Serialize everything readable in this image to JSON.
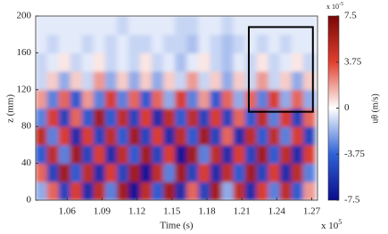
{
  "chart_data": {
    "type": "heatmap",
    "xlabel": "Time (s)",
    "ylabel": "z (mm)",
    "x_multiplier": {
      "base": "x 10",
      "exponent": "5"
    },
    "x": [
      1.038,
      1.048,
      1.058,
      1.068,
      1.078,
      1.088,
      1.098,
      1.108,
      1.118,
      1.128,
      1.138,
      1.148,
      1.158,
      1.168,
      1.178,
      1.188,
      1.198,
      1.208,
      1.218,
      1.228,
      1.238,
      1.248,
      1.258,
      1.268
    ],
    "y": [
      10,
      30,
      50,
      70,
      90,
      110,
      130,
      150,
      170,
      190
    ],
    "values": [
      [
        -2,
        3,
        -5,
        4,
        -6,
        5,
        -3,
        6,
        -7,
        5,
        -4,
        6,
        -6,
        3,
        -5,
        6,
        -2,
        5,
        -6,
        4,
        -3,
        5,
        -4,
        2
      ],
      [
        3,
        -5,
        6,
        -4,
        5,
        -6,
        4,
        -5,
        6,
        -7,
        5,
        -3,
        6,
        -5,
        4,
        -6,
        5,
        -4,
        6,
        -5,
        4,
        -6,
        5,
        -3
      ],
      [
        -4,
        5,
        -3,
        6,
        -5,
        4,
        -6,
        5,
        -4,
        6,
        -5,
        4,
        -7,
        6,
        -3,
        5,
        -6,
        4,
        -5,
        6,
        -4,
        5,
        -6,
        4
      ],
      [
        5,
        -3,
        4,
        -6,
        4,
        -5,
        5,
        -4,
        6,
        -5,
        4,
        -6,
        5,
        -4,
        6,
        -5,
        3,
        -6,
        5,
        -4,
        5,
        -3,
        4,
        -5
      ],
      [
        -3,
        4,
        -5,
        3,
        -4,
        6,
        -4,
        5,
        -5,
        4,
        -6,
        5,
        -4,
        5,
        -5,
        4,
        -5,
        3,
        -4,
        5,
        -3,
        4,
        -5,
        3
      ],
      [
        2,
        -3,
        3,
        -4,
        2,
        -3,
        4,
        -3,
        3,
        -4,
        3,
        -2,
        4,
        -3,
        2,
        -4,
        3,
        -2,
        3,
        -3,
        4,
        -2,
        3,
        -2
      ],
      [
        -1,
        1,
        -2,
        1,
        -1,
        2,
        -2,
        1,
        -2,
        1,
        -2,
        1,
        -1,
        2,
        -1,
        1,
        -2,
        1,
        -1,
        2,
        -1,
        1,
        -2,
        1
      ],
      [
        -1,
        -0.5,
        0.5,
        -1,
        -0.5,
        0.5,
        -1,
        -0.5,
        -1,
        0.5,
        -1,
        -0.5,
        -1.5,
        -0.5,
        0.5,
        -1,
        -1.5,
        -0.5,
        -1,
        0.5,
        -1,
        -0.5,
        0.5,
        -1
      ],
      [
        -0.5,
        -1,
        -0.5,
        -0.5,
        -1,
        -0.5,
        -1,
        -0.5,
        -1,
        -1,
        -0.5,
        -1,
        -1,
        -1.5,
        -0.5,
        -1,
        -1.5,
        -1,
        -0.5,
        -1,
        -0.5,
        -1,
        -0.5,
        -0.5
      ],
      [
        -0.5,
        -0.5,
        -0.5,
        -0.5,
        -0.5,
        -0.5,
        -0.5,
        -1,
        -0.5,
        -0.5,
        -0.5,
        -0.5,
        -1,
        -1,
        -0.5,
        -0.5,
        -1,
        -0.5,
        -0.5,
        -0.5,
        -0.5,
        -0.5,
        -0.5,
        -0.5
      ]
    ],
    "cell_width": 0.01,
    "cell_height": 20,
    "xlim": [
      1.033,
      1.275
    ],
    "xticks": [
      1.06,
      1.09,
      1.12,
      1.15,
      1.18,
      1.21,
      1.24,
      1.27
    ],
    "ylim": [
      0,
      200
    ],
    "yticks": [
      0,
      40,
      80,
      120,
      160,
      200
    ],
    "clim": [
      -7.5,
      7.5
    ],
    "cticks": [
      -7.5,
      -3.75,
      0,
      3.75,
      7.5
    ],
    "colormap": [
      "#0c0c8c",
      "#2e62d6",
      "#ffffff",
      "#e0402e",
      "#7a0606"
    ],
    "colorbar_label": "uθ (m/s)",
    "colorbar_multiplier": {
      "base": "x 10",
      "exponent": "-5"
    },
    "highlight_box": {
      "xlim": [
        1.216,
        1.271
      ],
      "ylim": [
        96,
        188
      ]
    }
  }
}
